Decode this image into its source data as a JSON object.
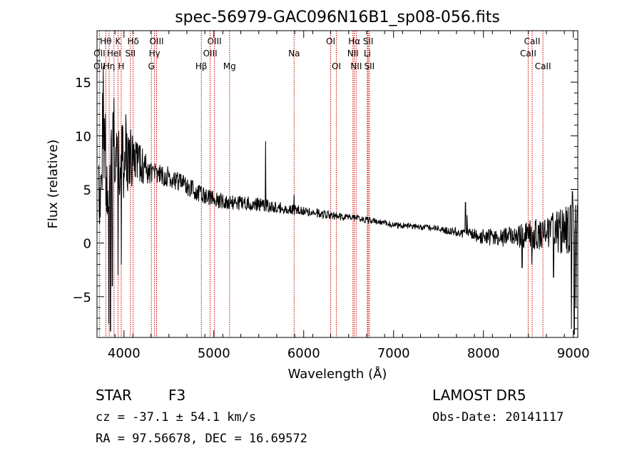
{
  "chart_data": {
    "type": "line",
    "title": "spec-56979-GAC096N16B1_sp08-056.fits",
    "xlabel": "Wavelength (Å)",
    "ylabel": "Flux (relative)",
    "xlim": [
      3700,
      9050
    ],
    "ylim": [
      -8.8,
      19.8
    ],
    "xticks": [
      4000,
      5000,
      6000,
      7000,
      8000,
      9000
    ],
    "yticks": [
      -5,
      0,
      5,
      10,
      15
    ],
    "grid": false,
    "legend": "none",
    "line_color": "#000000",
    "marker_color": "#cc0000",
    "spectrum": {
      "anchors": [
        [
          3700,
          2.0
        ],
        [
          3790,
          8.0
        ],
        [
          3830,
          7.0
        ],
        [
          3900,
          8.5
        ],
        [
          3960,
          7.0
        ],
        [
          4050,
          8.0
        ],
        [
          4150,
          7.5
        ],
        [
          4300,
          6.5
        ],
        [
          4500,
          6.2
        ],
        [
          4700,
          5.2
        ],
        [
          4900,
          4.5
        ],
        [
          5000,
          4.0
        ],
        [
          5200,
          3.8
        ],
        [
          5500,
          3.6
        ],
        [
          5800,
          3.2
        ],
        [
          6000,
          3.0
        ],
        [
          6300,
          2.6
        ],
        [
          6563,
          2.3
        ],
        [
          6800,
          2.0
        ],
        [
          7000,
          1.7
        ],
        [
          7300,
          1.5
        ],
        [
          7600,
          1.2
        ],
        [
          7800,
          0.9
        ],
        [
          8000,
          0.6
        ],
        [
          8200,
          0.5
        ],
        [
          8400,
          0.7
        ],
        [
          8600,
          0.9
        ],
        [
          8800,
          1.0
        ],
        [
          9000,
          1.0
        ],
        [
          9050,
          1.0
        ]
      ],
      "noise": [
        [
          3700,
          4.0
        ],
        [
          3850,
          5.0
        ],
        [
          4000,
          3.5
        ],
        [
          4100,
          2.5
        ],
        [
          4300,
          1.0
        ],
        [
          4800,
          0.9
        ],
        [
          5000,
          0.8
        ],
        [
          5600,
          0.6
        ],
        [
          6000,
          0.45
        ],
        [
          6600,
          0.35
        ],
        [
          7000,
          0.3
        ],
        [
          7500,
          0.3
        ],
        [
          7800,
          0.5
        ],
        [
          8000,
          0.8
        ],
        [
          8300,
          1.0
        ],
        [
          8600,
          1.5
        ],
        [
          8800,
          2.0
        ],
        [
          9050,
          3.0
        ]
      ],
      "dips": [
        [
          3830,
          -7.5
        ],
        [
          3850,
          -8.2
        ],
        [
          3870,
          -4.0
        ],
        [
          3890,
          -6.0
        ],
        [
          3935,
          -3.0
        ],
        [
          3970,
          -2.0
        ],
        [
          8430,
          -2.3
        ],
        [
          8540,
          -2.0
        ],
        [
          8780,
          -3.2
        ],
        [
          8980,
          -8.0
        ],
        [
          9010,
          -8.5
        ],
        [
          9030,
          -6.0
        ]
      ],
      "spikes": [
        [
          3770,
          16.5
        ],
        [
          3760,
          14.0
        ],
        [
          3890,
          13.5
        ],
        [
          3980,
          11.0
        ],
        [
          4020,
          12.0
        ],
        [
          5577,
          9.5
        ],
        [
          5892,
          4.5
        ],
        [
          7800,
          3.8
        ],
        [
          7820,
          2.6
        ],
        [
          8990,
          4.8
        ],
        [
          9040,
          2.6
        ]
      ]
    },
    "lines": [
      {
        "label": "Hθ",
        "wavelength": 3798,
        "row": 1
      },
      {
        "label": "OII",
        "wavelength": 3727,
        "row": 2
      },
      {
        "label": "Hη",
        "wavelength": 3835,
        "row": 3
      },
      {
        "label": "OII",
        "wavelength": 3727,
        "row": 3
      },
      {
        "label": "HeI",
        "wavelength": 3889,
        "row": 2
      },
      {
        "label": "K",
        "wavelength": 3934,
        "row": 1
      },
      {
        "label": "H",
        "wavelength": 3969,
        "row": 3
      },
      {
        "label": "Hδ",
        "wavelength": 4102,
        "row": 1
      },
      {
        "label": "SII",
        "wavelength": 4072,
        "row": 2
      },
      {
        "label": "OIII",
        "wavelength": 4363,
        "row": 1
      },
      {
        "label": "Hγ",
        "wavelength": 4340,
        "row": 2
      },
      {
        "label": "G",
        "wavelength": 4305,
        "row": 3
      },
      {
        "label": "Hβ",
        "wavelength": 4861,
        "row": 3
      },
      {
        "label": "OIII",
        "wavelength": 5007,
        "row": 1
      },
      {
        "label": "OIII",
        "wavelength": 4959,
        "row": 2
      },
      {
        "label": "Mg",
        "wavelength": 5175,
        "row": 3
      },
      {
        "label": "Na",
        "wavelength": 5893,
        "row": 2
      },
      {
        "label": "OI",
        "wavelength": 6300,
        "row": 1
      },
      {
        "label": "OI",
        "wavelength": 6364,
        "row": 3
      },
      {
        "label": "Hα",
        "wavelength": 6563,
        "row": 1
      },
      {
        "label": "NII",
        "wavelength": 6548,
        "row": 2
      },
      {
        "label": "NII",
        "wavelength": 6584,
        "row": 3
      },
      {
        "label": "SII",
        "wavelength": 6717,
        "row": 1
      },
      {
        "label": "Li",
        "wavelength": 6708,
        "row": 2
      },
      {
        "label": "SII",
        "wavelength": 6731,
        "row": 3
      },
      {
        "label": "CaII",
        "wavelength": 8542,
        "row": 1
      },
      {
        "label": "CaII",
        "wavelength": 8498,
        "row": 2
      },
      {
        "label": "CaII",
        "wavelength": 8662,
        "row": 3
      }
    ]
  },
  "info": {
    "object_type": "STAR",
    "subclass": "F3",
    "survey": "LAMOST DR5",
    "cz_text": "cz = -37.1 ± 54.1 km/s",
    "obs_date_text": "Obs-Date: 20141117",
    "coords_text": "RA =  97.56678, DEC =  16.69572"
  }
}
